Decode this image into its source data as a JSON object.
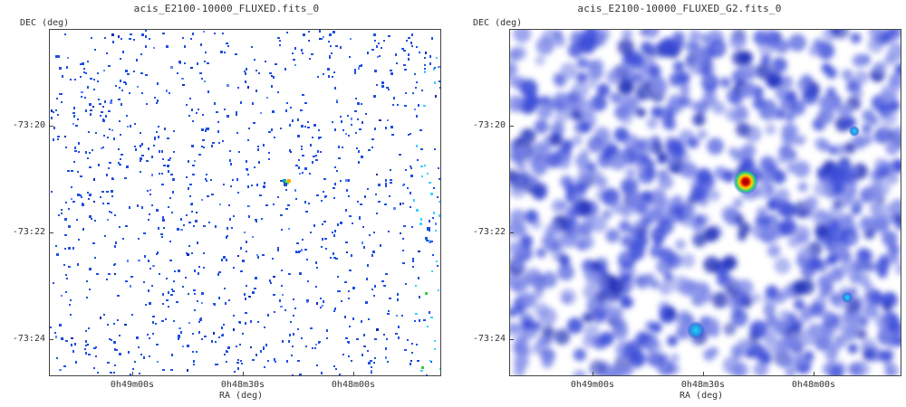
{
  "left_panel": {
    "title": "acis_E2100-10000_FLUXED.fits_0",
    "y_axis_label": "DEC (deg)",
    "x_axis_label": "RA (deg)",
    "y_ticks": [
      "-73:20",
      "-73:22",
      "-73:24"
    ],
    "x_ticks": [
      "0h49m00s",
      "0h48m30s",
      "0h48m00s"
    ]
  },
  "right_panel": {
    "title": "acis_E2100-10000_FLUXED_G2.fits_0",
    "y_axis_label": "DEC (deg)",
    "x_axis_label": "RA (deg)",
    "y_ticks": [
      "-73:20",
      "-73:22",
      "-73:24"
    ],
    "x_ticks": [
      "0h49m00s",
      "0h48m30s",
      "0h48m00s"
    ]
  },
  "colors": {
    "sparse_pixel": "#1f4fe0",
    "smoothed_blob": "#3a4bd8",
    "hot_source_core": "#c80000",
    "hot_source_ring": "#ffd400",
    "cyan_pixel": "#3ad0ff",
    "green_pixel": "#33cc33"
  }
}
